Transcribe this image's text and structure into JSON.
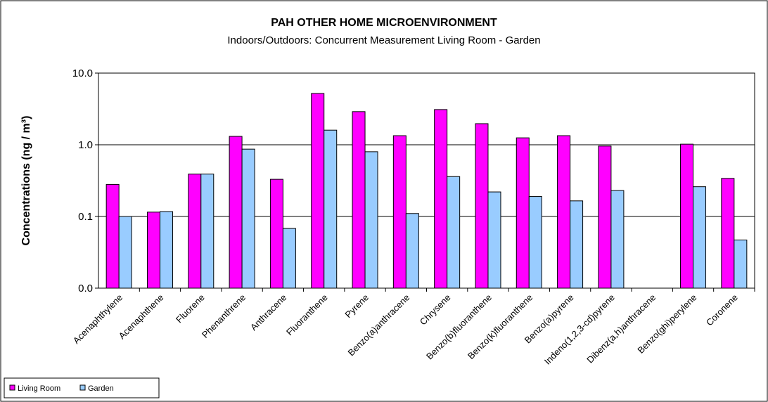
{
  "chart_data": {
    "type": "bar",
    "title": "PAH OTHER HOME MICROENVIRONMENT",
    "subtitle": "Indoors/Outdoors: Concurrent Measurement Living Room - Garden",
    "y_label": "Concentrations (ng / m³)",
    "categories": [
      "Acenaphthylene",
      "Acenaphthene",
      "Fluorene",
      "Phenanthrene",
      "Anthracene",
      "Fluoranthene",
      "Pyrene",
      "Benzo(a)anthracene",
      "Chrysene",
      "Benzo(b)fluoranthene",
      "Benzo(k)fluoranthene",
      "Benzo(a)pyrene",
      "Indeno(1,2,3-cd)pyrene",
      "Dibenz(a,h)anthracene",
      "Benzo(ghi)perylene",
      "Coronene"
    ],
    "series": [
      {
        "name": "Living Room",
        "color": "#ff00ff",
        "values": [
          0.28,
          0.115,
          0.39,
          1.31,
          0.33,
          5.2,
          2.9,
          1.34,
          3.1,
          1.97,
          1.25,
          1.34,
          0.96,
          null,
          1.02,
          0.34
        ]
      },
      {
        "name": "Garden",
        "color": "#99ccff",
        "values": [
          0.1,
          0.117,
          0.39,
          0.87,
          0.068,
          1.6,
          0.8,
          0.11,
          0.36,
          0.22,
          0.19,
          0.165,
          0.23,
          null,
          0.26,
          0.047
        ]
      }
    ],
    "log_scale": true,
    "ylim": [
      0.01,
      10
    ],
    "yticks": [
      {
        "value": 0.01,
        "label": "0.0"
      },
      {
        "value": 0.1,
        "label": "0.1"
      },
      {
        "value": 1,
        "label": "1.0"
      },
      {
        "value": 10,
        "label": "10.0"
      }
    ],
    "grid": true,
    "legend": "bottom-left"
  }
}
